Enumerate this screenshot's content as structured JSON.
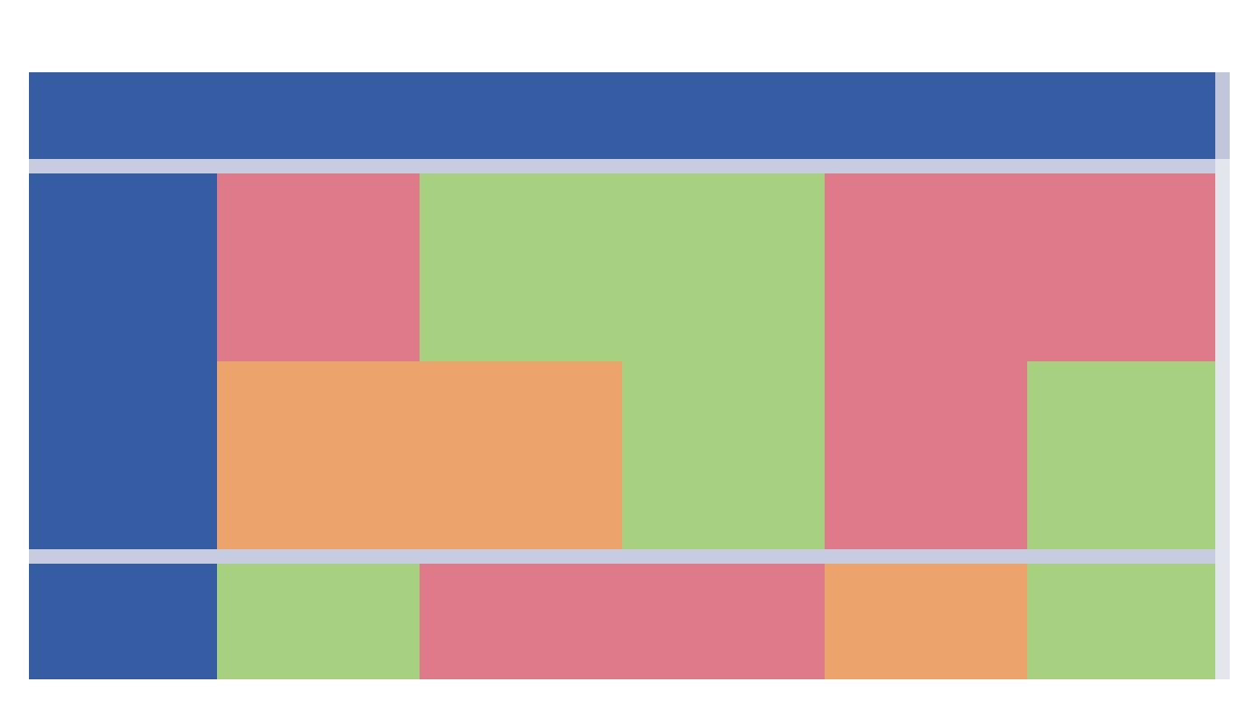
{
  "table": {
    "rows": [
      [
        {
          "color": "#365ca4"
        },
        {
          "color": "#365ca4"
        },
        {
          "color": "#365ca4"
        },
        {
          "color": "#365ca4"
        },
        {
          "color": "#365ca4"
        },
        {
          "color": "#365ca4"
        }
      ],
      [
        {
          "color": "#c8cce0",
          "colspan": 6
        }
      ],
      [
        {
          "color": "#365ca4"
        },
        {
          "color": "#df7a8b"
        },
        {
          "color": "#a6cf80",
          "colspan": 2
        },
        {
          "color": "#df7a8b",
          "rowspan": 2
        },
        {
          "color": "#df7a8b"
        }
      ],
      [
        {
          "color": "#365ca4"
        },
        {
          "color": "#eda46c",
          "colspan": 2
        },
        {
          "color": "#a6cf80"
        },
        {
          "color": "#a6cf80"
        }
      ],
      [
        {
          "color": "#c8cce0",
          "colspan": 6
        }
      ],
      [
        {
          "color": "#365ca4"
        },
        {
          "color": "#a6cf80"
        },
        {
          "color": "#df7a8b",
          "colspan": 2
        },
        {
          "color": "#eda46c"
        },
        {
          "color": "#a6cf80"
        }
      ]
    ]
  }
}
